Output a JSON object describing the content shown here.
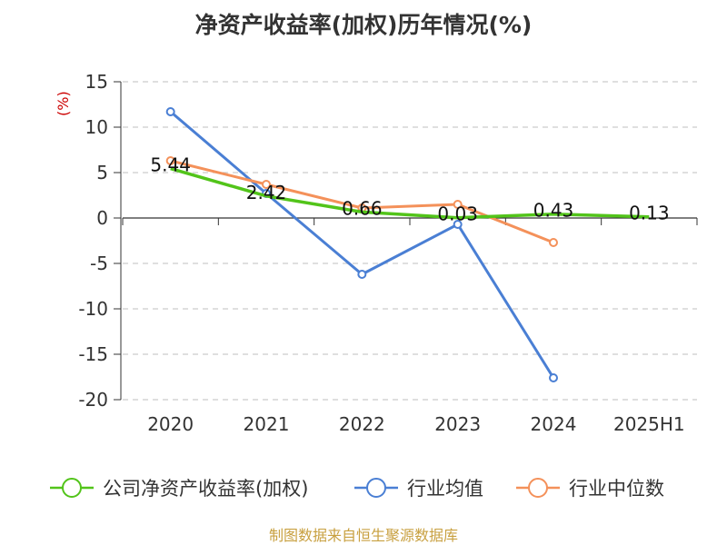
{
  "chart_data": {
    "type": "line",
    "title": "净资产收益率(加权)历年情况(%)",
    "ylabel": "(%)",
    "categories": [
      "2020",
      "2021",
      "2022",
      "2023",
      "2024",
      "2025H1"
    ],
    "ylim": [
      -20,
      15
    ],
    "yticks": [
      15,
      10,
      5,
      0,
      -5,
      -10,
      -15,
      -20
    ],
    "grid": true,
    "legend_position": "bottom",
    "series": [
      {
        "name": "公司净资产收益率(加权)",
        "color": "#52c41a",
        "values": [
          5.44,
          2.42,
          0.66,
          0.03,
          0.43,
          0.13
        ],
        "labels": [
          "5.44",
          "2.42",
          "0.66",
          "0.03",
          "0.43",
          "0.13"
        ]
      },
      {
        "name": "行业均值",
        "color": "#4a7fd4",
        "values": [
          11.7,
          2.7,
          -6.2,
          -0.7,
          -17.6,
          null
        ]
      },
      {
        "name": "行业中位数",
        "color": "#f4915a",
        "values": [
          6.3,
          3.7,
          1.1,
          1.5,
          -2.7,
          null
        ]
      }
    ]
  },
  "source": "制图数据来自恒生聚源数据库"
}
